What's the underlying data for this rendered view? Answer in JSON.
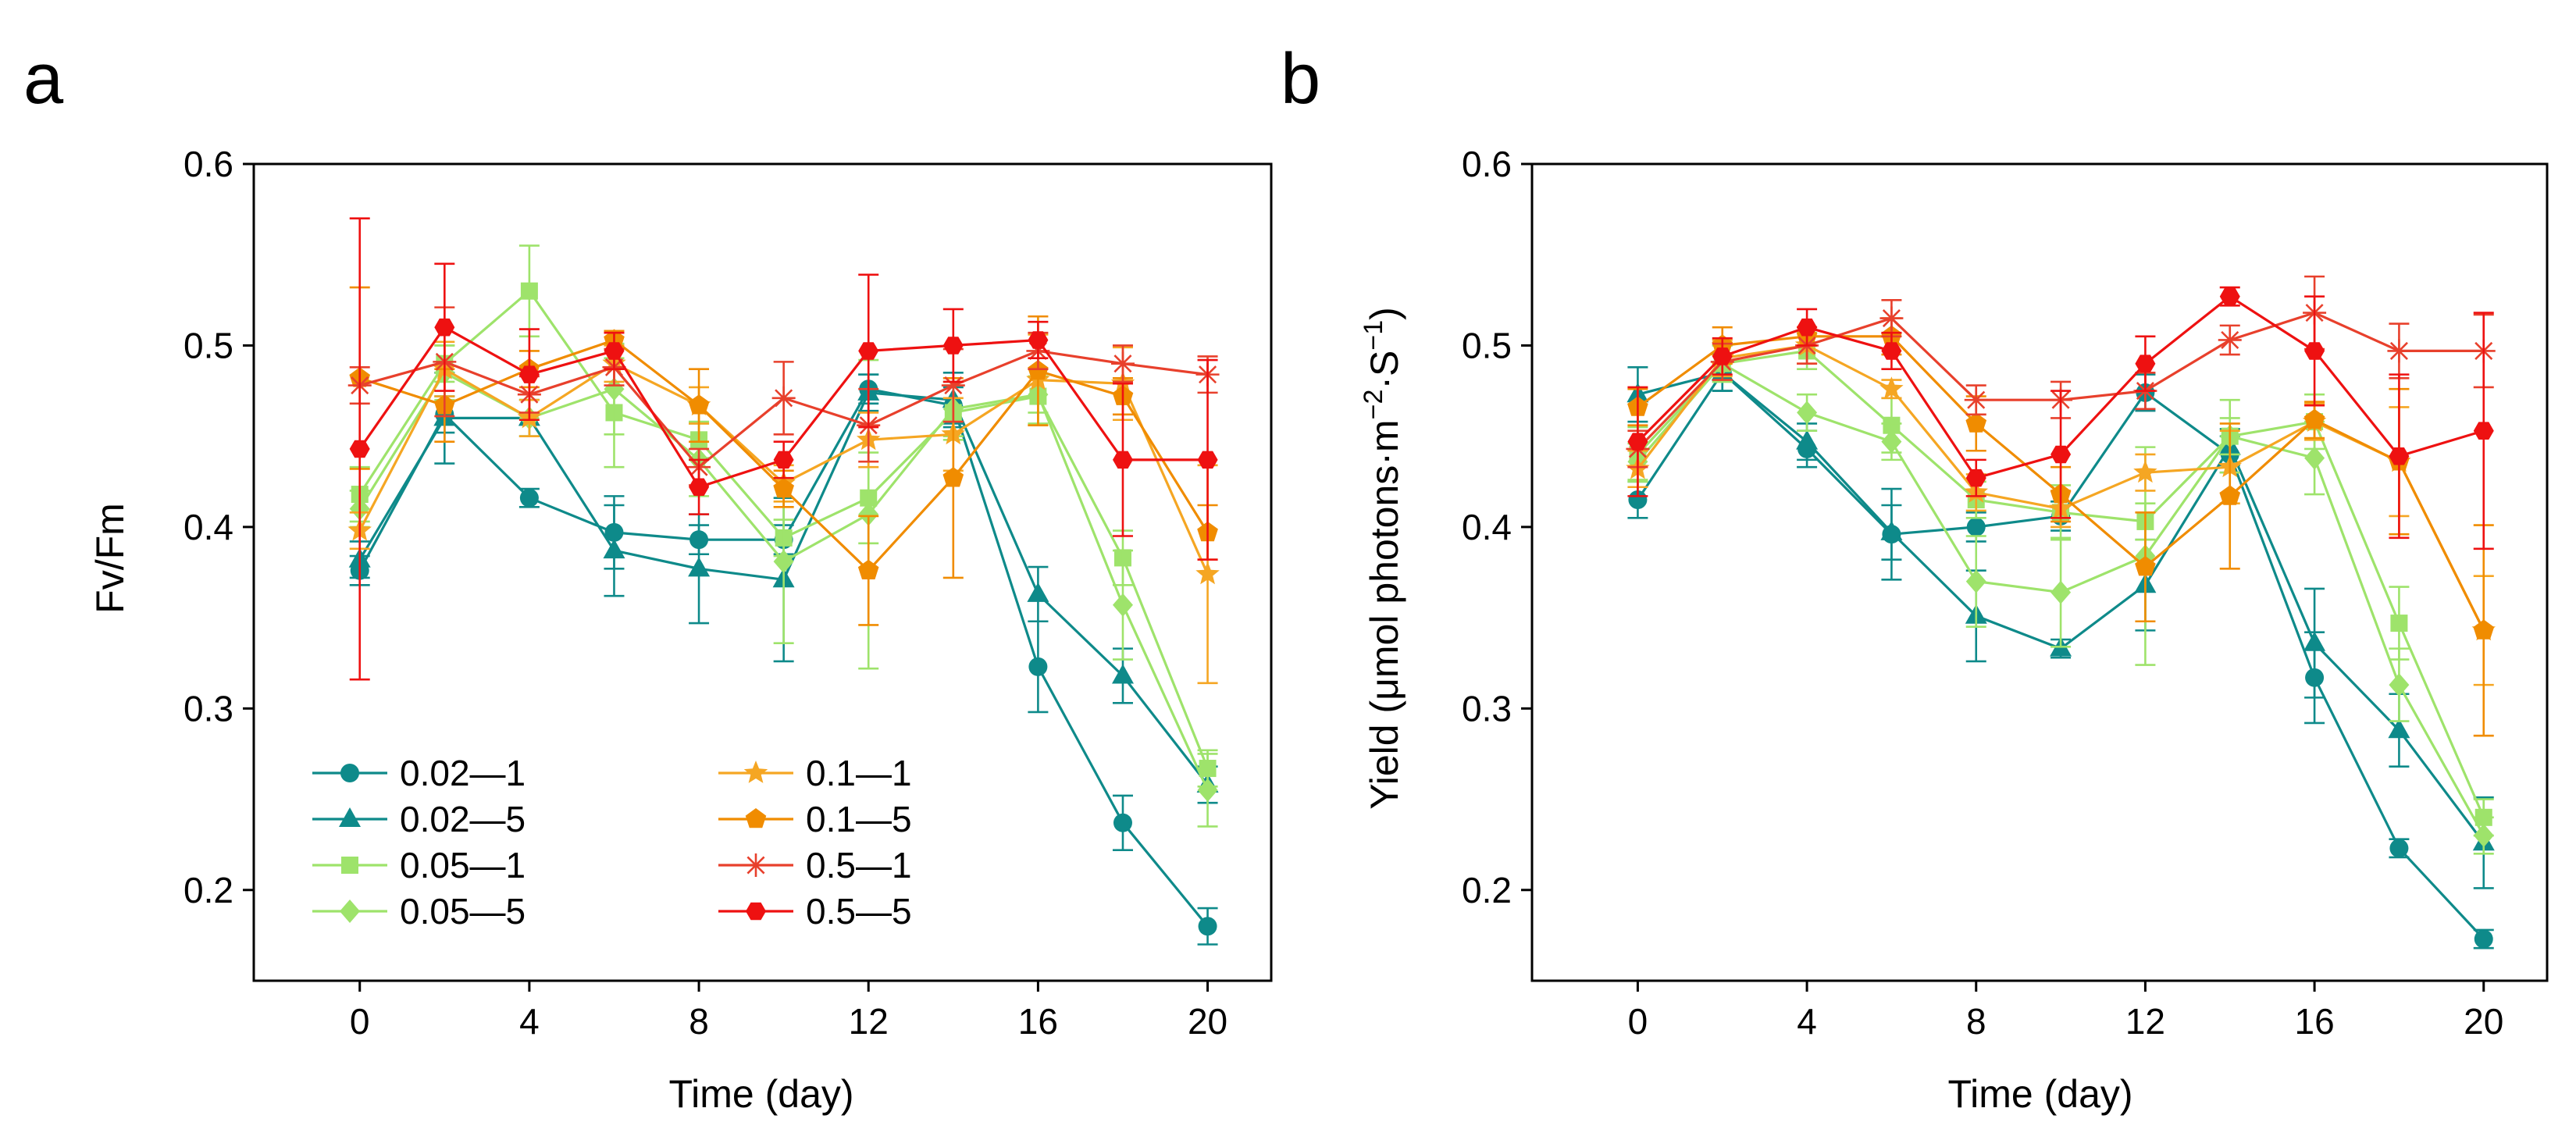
{
  "chart_data": [
    {
      "type": "line",
      "panel_label": "a",
      "xlabel": "Time (day)",
      "ylabel": "Fv/Fm",
      "xlim": [
        -2.5,
        21.5
      ],
      "ylim": [
        0.15,
        0.6
      ],
      "xticks": [
        0,
        4,
        8,
        12,
        16,
        20
      ],
      "yticks": [
        0.2,
        0.3,
        0.4,
        0.5,
        0.6
      ],
      "x": [
        0,
        2,
        4,
        6,
        8,
        10,
        12,
        14,
        16,
        18,
        20
      ],
      "legend": {
        "position": "bottom-left",
        "columns": 2
      },
      "series": [
        {
          "name": "0.02—1",
          "color": "#0e8a8a",
          "marker": "circle",
          "values": [
            0.376,
            0.462,
            0.416,
            0.397,
            0.393,
            0.393,
            0.476,
            0.467,
            0.323,
            0.237,
            0.18
          ],
          "errors": [
            0.008,
            0.01,
            0.005,
            0.02,
            0.008,
            0.008,
            0.008,
            0.01,
            0.025,
            0.015,
            0.01
          ]
        },
        {
          "name": "0.02—5",
          "color": "#0e8a8a",
          "marker": "triangle",
          "values": [
            0.382,
            0.46,
            0.46,
            0.387,
            0.377,
            0.371,
            0.474,
            0.47,
            0.363,
            0.318,
            0.258
          ],
          "errors": [
            0.01,
            0.025,
            0.01,
            0.025,
            0.03,
            0.045,
            0.01,
            0.015,
            0.015,
            0.015,
            0.01
          ]
        },
        {
          "name": "0.05—1",
          "color": "#9ee36b",
          "marker": "square",
          "values": [
            0.418,
            0.49,
            0.53,
            0.463,
            0.448,
            0.394,
            0.416,
            0.463,
            0.472,
            0.383,
            0.267
          ],
          "errors": [
            0.015,
            0.01,
            0.025,
            0.03,
            0.01,
            0.01,
            0.025,
            0.015,
            0.015,
            0.015,
            0.01
          ]
        },
        {
          "name": "0.05—5",
          "color": "#9ee36b",
          "marker": "diamond",
          "values": [
            0.41,
            0.485,
            0.46,
            0.476,
            0.437,
            0.381,
            0.407,
            0.465,
            0.473,
            0.357,
            0.255
          ],
          "errors": [
            0.01,
            0.015,
            0.01,
            0.025,
            0.02,
            0.045,
            0.085,
            0.015,
            0.01,
            0.03,
            0.02
          ]
        },
        {
          "name": "0.1—1",
          "color": "#f5a623",
          "marker": "star",
          "values": [
            0.398,
            0.487,
            0.46,
            0.49,
            0.467,
            0.424,
            0.448,
            0.451,
            0.481,
            0.479,
            0.374
          ],
          "errors": [
            0.01,
            0.015,
            0.01,
            0.01,
            0.01,
            0.01,
            0.015,
            0.02,
            0.025,
            0.02,
            0.06
          ]
        },
        {
          "name": "0.1—5",
          "color": "#f08c00",
          "marker": "pentagon",
          "values": [
            0.482,
            0.467,
            0.487,
            0.503,
            0.467,
            0.421,
            0.376,
            0.427,
            0.486,
            0.472,
            0.397
          ],
          "errors": [
            0.05,
            0.02,
            0.01,
            0.005,
            0.02,
            0.01,
            0.03,
            0.055,
            0.03,
            0.01,
            0.015
          ]
        },
        {
          "name": "0.5—1",
          "color": "#e8402c",
          "marker": "asterisk",
          "values": [
            0.478,
            0.491,
            0.473,
            0.488,
            0.433,
            0.471,
            0.456,
            0.478,
            0.497,
            0.49,
            0.484
          ],
          "errors": [
            0.01,
            0.03,
            0.01,
            0.01,
            0.01,
            0.02,
            0.02,
            0.02,
            0.01,
            0.01,
            0.01
          ]
        },
        {
          "name": "0.5—5",
          "color": "#ee1111",
          "marker": "hexagon",
          "values": [
            0.443,
            0.51,
            0.484,
            0.497,
            0.422,
            0.437,
            0.497,
            0.5,
            0.503,
            0.437,
            0.437
          ],
          "errors": [
            0.127,
            0.035,
            0.025,
            0.01,
            0.015,
            0.01,
            0.042,
            0.02,
            0.01,
            0.042,
            0.055
          ]
        }
      ]
    },
    {
      "type": "line",
      "panel_label": "b",
      "xlabel": "Time (day)",
      "ylabel_parts": [
        "Yield (μmol photons·m",
        "−2",
        "·S",
        "−1",
        ")"
      ],
      "xlim": [
        -2.5,
        21.5
      ],
      "ylim": [
        0.15,
        0.6
      ],
      "xticks": [
        0,
        4,
        8,
        12,
        16,
        20
      ],
      "yticks": [
        0.2,
        0.3,
        0.4,
        0.5,
        0.6
      ],
      "x": [
        0,
        2,
        4,
        6,
        8,
        10,
        12,
        14,
        16,
        18,
        20
      ],
      "series": [
        {
          "name": "0.02—1",
          "color": "#0e8a8a",
          "marker": "circle",
          "values": [
            0.415,
            0.485,
            0.443,
            0.396,
            0.4,
            0.406,
            0.474,
            0.44,
            0.317,
            0.223,
            0.173
          ],
          "errors": [
            0.01,
            0.01,
            0.01,
            0.025,
            0.008,
            0.008,
            0.01,
            0.01,
            0.025,
            0.005,
            0.005
          ]
        },
        {
          "name": "0.02—5",
          "color": "#0e8a8a",
          "marker": "triangle",
          "values": [
            0.473,
            0.485,
            0.447,
            0.397,
            0.351,
            0.333,
            0.368,
            0.444,
            0.336,
            0.288,
            0.226
          ],
          "errors": [
            0.015,
            0.01,
            0.01,
            0.015,
            0.025,
            0.005,
            0.025,
            0.01,
            0.03,
            0.02,
            0.025
          ]
        },
        {
          "name": "0.05—1",
          "color": "#9ee36b",
          "marker": "square",
          "values": [
            0.44,
            0.49,
            0.497,
            0.456,
            0.415,
            0.408,
            0.403,
            0.45,
            0.458,
            0.347,
            0.24
          ],
          "errors": [
            0.015,
            0.01,
            0.01,
            0.015,
            0.01,
            0.015,
            0.01,
            0.02,
            0.015,
            0.02,
            0.01
          ]
        },
        {
          "name": "0.05—5",
          "color": "#9ee36b",
          "marker": "diamond",
          "values": [
            0.436,
            0.49,
            0.463,
            0.447,
            0.37,
            0.364,
            0.384,
            0.45,
            0.438,
            0.313,
            0.23
          ],
          "errors": [
            0.01,
            0.01,
            0.01,
            0.01,
            0.025,
            0.03,
            0.06,
            0.01,
            0.02,
            0.02,
            0.01
          ]
        },
        {
          "name": "0.1—1",
          "color": "#f5a623",
          "marker": "star",
          "values": [
            0.432,
            0.493,
            0.5,
            0.476,
            0.419,
            0.41,
            0.43,
            0.433,
            0.458,
            0.436,
            0.343
          ],
          "errors": [
            0.01,
            0.01,
            0.01,
            0.005,
            0.01,
            0.01,
            0.01,
            0.02,
            0.01,
            0.03,
            0.03
          ]
        },
        {
          "name": "0.1—5",
          "color": "#f08c00",
          "marker": "pentagon",
          "values": [
            0.466,
            0.5,
            0.505,
            0.505,
            0.457,
            0.418,
            0.378,
            0.417,
            0.459,
            0.436,
            0.343
          ],
          "errors": [
            0.01,
            0.01,
            0.005,
            0.01,
            0.015,
            0.015,
            0.03,
            0.04,
            0.01,
            0.04,
            0.058
          ]
        },
        {
          "name": "0.5—1",
          "color": "#e8402c",
          "marker": "asterisk",
          "values": [
            0.443,
            0.491,
            0.5,
            0.515,
            0.47,
            0.47,
            0.475,
            0.503,
            0.518,
            0.497,
            0.497
          ],
          "errors": [
            0.01,
            0.01,
            0.01,
            0.01,
            0.008,
            0.01,
            0.01,
            0.008,
            0.02,
            0.015,
            0.02
          ]
        },
        {
          "name": "0.5—5",
          "color": "#ee1111",
          "marker": "hexagon",
          "values": [
            0.447,
            0.494,
            0.51,
            0.497,
            0.427,
            0.44,
            0.49,
            0.527,
            0.497,
            0.439,
            0.453
          ],
          "errors": [
            0.03,
            0.01,
            0.01,
            0.01,
            0.01,
            0.035,
            0.015,
            0.005,
            0.03,
            0.045,
            0.065
          ]
        }
      ]
    }
  ]
}
